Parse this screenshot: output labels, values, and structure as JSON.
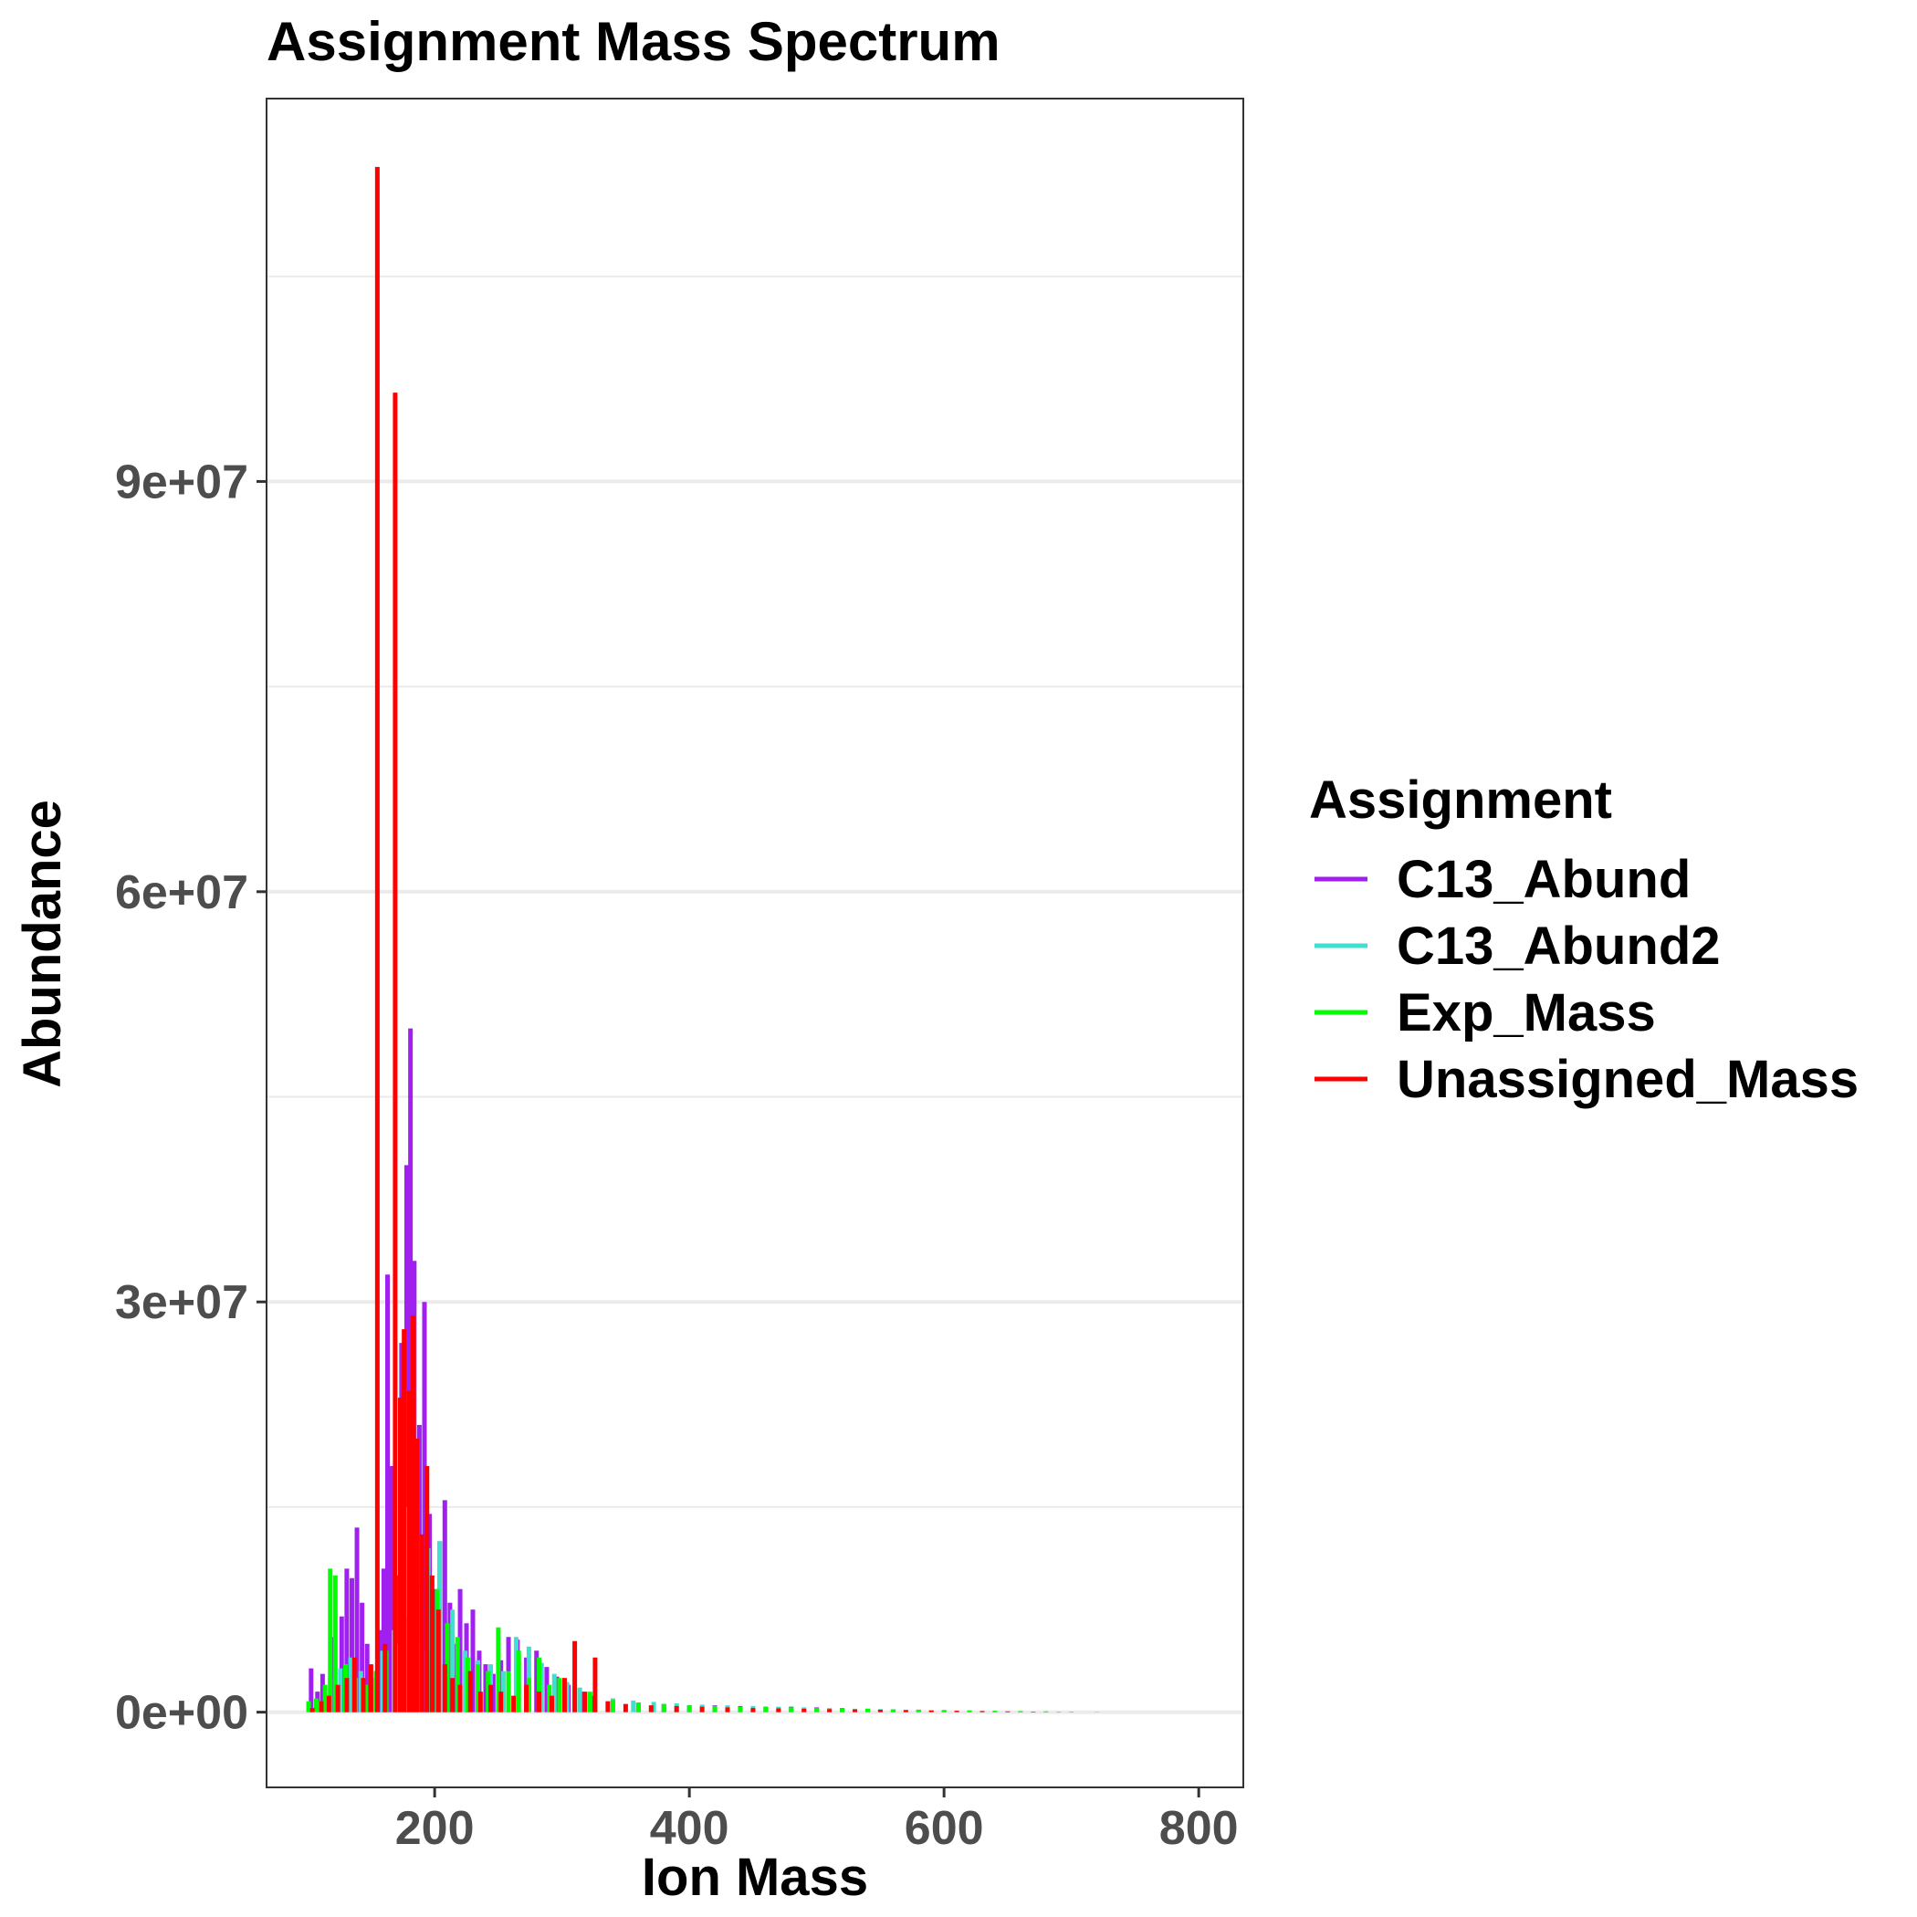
{
  "chart_data": {
    "type": "bar",
    "title": "Assignment Mass Spectrum",
    "xlabel": "Ion Mass",
    "ylabel": "Abundance",
    "xlim": [
      68,
      835
    ],
    "ylim": [
      -5500000,
      118000000
    ],
    "x_ticks": [
      200,
      400,
      600,
      800
    ],
    "x_tick_labels": [
      "200",
      "400",
      "600",
      "800"
    ],
    "y_ticks": [
      0,
      30000000,
      60000000,
      90000000
    ],
    "y_tick_labels": [
      "0e+00",
      "3e+07",
      "6e+07",
      "9e+07"
    ],
    "y_minor_ticks": [
      15000000,
      45000000,
      75000000,
      105000000
    ],
    "grid": true,
    "legend": {
      "title": "Assignment",
      "position": "right"
    },
    "series": [
      {
        "name": "C13_Abund",
        "color": "#a020f0",
        "x": [
          103,
          108,
          112,
          120,
          127,
          131,
          135,
          139,
          143,
          147,
          150,
          157,
          160,
          163,
          166,
          170,
          174,
          178,
          181,
          184,
          188,
          192,
          196,
          200,
          204,
          208,
          212,
          216,
          220,
          225,
          230,
          235,
          240,
          246,
          252,
          258,
          265,
          272,
          280,
          288,
          296,
          305,
          315,
          325,
          340,
          360,
          380,
          400,
          420,
          440,
          460,
          480,
          500,
          520,
          540,
          560,
          580,
          600,
          620,
          640,
          660,
          680
        ],
        "values": [
          3200000,
          1500000,
          2800000,
          5500000,
          7000000,
          10500000,
          9800000,
          13500000,
          8000000,
          5000000,
          2500000,
          6000000,
          10500000,
          32000000,
          18000000,
          10000000,
          27000000,
          40000000,
          50000000,
          33000000,
          21000000,
          30000000,
          14500000,
          9000000,
          12500000,
          15500000,
          8000000,
          5000000,
          9000000,
          6500000,
          7500000,
          4500000,
          3500000,
          2800000,
          3800000,
          5500000,
          5300000,
          4000000,
          4500000,
          3300000,
          2600000,
          2000000,
          1500000,
          1200000,
          1000000,
          700000,
          600000,
          500000,
          500000,
          450000,
          400000,
          400000,
          350000,
          300000,
          250000,
          200000,
          180000,
          150000,
          120000,
          90000,
          60000,
          40000
        ]
      },
      {
        "name": "C13_Abund2",
        "color": "#40e0d0",
        "x": [
          110,
          118,
          126,
          134,
          142,
          151,
          159,
          168,
          177,
          186,
          195,
          204,
          214,
          224,
          234,
          244,
          254,
          264,
          274,
          284,
          294,
          304,
          314,
          326,
          340,
          356,
          372,
          390,
          410,
          430,
          450,
          470,
          490,
          510,
          530,
          550,
          570,
          590,
          610,
          630,
          650
        ],
        "values": [
          800000,
          2500000,
          3200000,
          4000000,
          3000000,
          2500000,
          4500000,
          6000000,
          15000000,
          9000000,
          12000000,
          12500000,
          7500000,
          4500000,
          3800000,
          3500000,
          3000000,
          5500000,
          4800000,
          3600000,
          2800000,
          2200000,
          1800000,
          1300000,
          1000000,
          850000,
          750000,
          650000,
          550000,
          500000,
          450000,
          400000,
          350000,
          300000,
          250000,
          220000,
          180000,
          150000,
          120000,
          90000,
          60000
        ]
      },
      {
        "name": "Exp_Mass",
        "color": "#00ff00",
        "x": [
          101,
          107,
          114,
          118,
          122,
          130,
          138,
          146,
          154,
          162,
          170,
          178,
          186,
          194,
          202,
          210,
          218,
          226,
          234,
          242,
          250,
          258,
          266,
          274,
          282,
          290,
          298,
          310,
          322,
          340,
          360,
          380,
          400,
          420,
          440,
          460,
          480,
          500,
          520,
          540,
          560,
          580,
          600,
          620,
          640,
          660,
          680,
          700,
          720
        ],
        "values": [
          800000,
          1000000,
          2000000,
          10500000,
          10000000,
          3500000,
          2500000,
          2000000,
          3000000,
          4500000,
          5000000,
          7000000,
          5500000,
          4500000,
          9000000,
          6500000,
          5500000,
          4000000,
          3500000,
          3000000,
          6200000,
          3000000,
          4500000,
          2500000,
          4000000,
          2000000,
          2500000,
          1800000,
          1500000,
          900000,
          700000,
          600000,
          500000,
          450000,
          400000,
          380000,
          350000,
          300000,
          280000,
          250000,
          200000,
          180000,
          150000,
          120000,
          100000,
          80000,
          60000,
          40000,
          20000
        ]
      },
      {
        "name": "Unassigned_Mass",
        "color": "#ff0000",
        "x": [
          104,
          111,
          117,
          124,
          131,
          137,
          144,
          150,
          155,
          161,
          169,
          173,
          176,
          180,
          183,
          186,
          190,
          194,
          198,
          203,
          208,
          214,
          220,
          228,
          236,
          244,
          252,
          262,
          272,
          282,
          292,
          302,
          310,
          318,
          326,
          336,
          350,
          370,
          390,
          410,
          430,
          450,
          470,
          490,
          510,
          530,
          550,
          570,
          590,
          610,
          630,
          650,
          670,
          690
        ],
        "values": [
          300000,
          800000,
          1200000,
          2000000,
          2500000,
          4000000,
          2500000,
          3500000,
          113000000,
          5000000,
          96500000,
          23000000,
          28000000,
          23500000,
          29000000,
          20000000,
          13000000,
          18000000,
          10000000,
          7500000,
          3500000,
          2500000,
          2000000,
          3000000,
          1500000,
          2000000,
          1500000,
          1200000,
          2000000,
          1500000,
          1200000,
          2500000,
          5200000,
          1500000,
          4000000,
          800000,
          600000,
          500000,
          450000,
          400000,
          350000,
          300000,
          280000,
          250000,
          220000,
          200000,
          180000,
          150000,
          120000,
          100000,
          80000,
          60000,
          40000,
          20000
        ]
      }
    ]
  }
}
